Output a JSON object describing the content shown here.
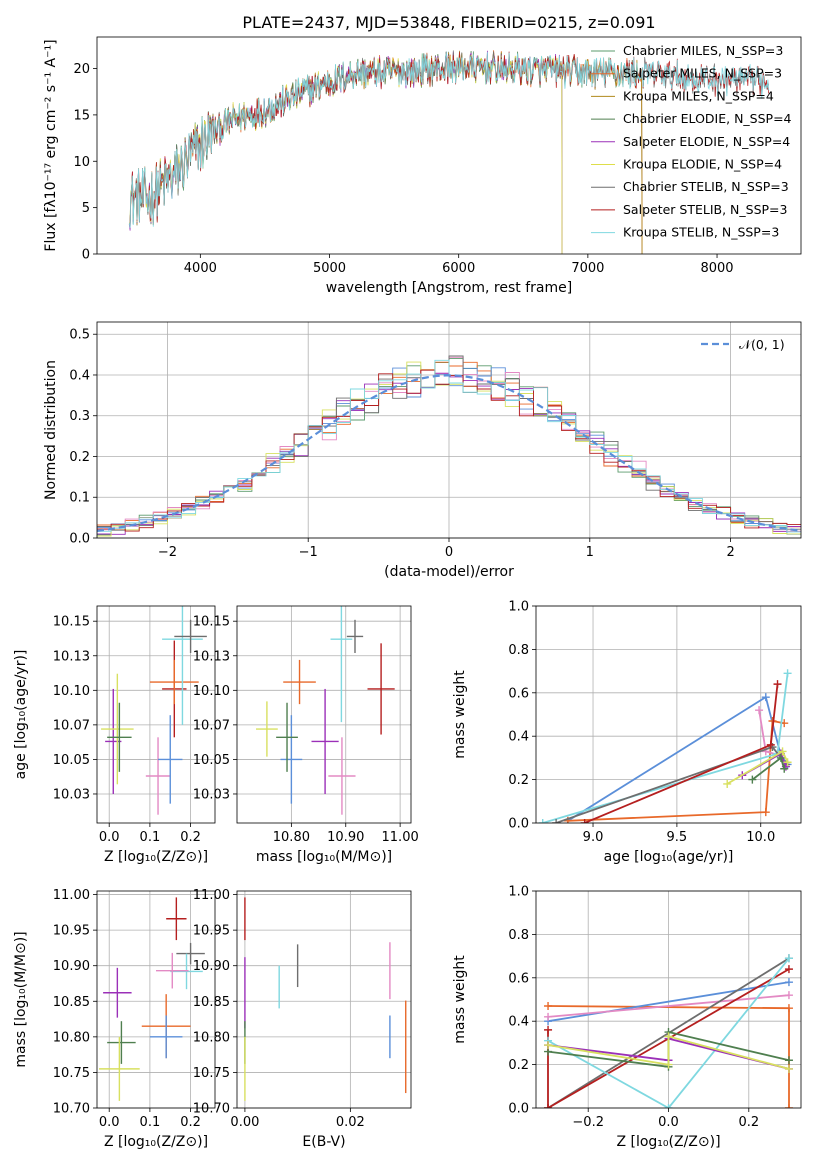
{
  "chart_data": [
    {
      "id": "spectrum",
      "type": "line",
      "title": "PLATE=2437, MJD=53848, FIBERID=0215, z=0.091",
      "xlabel": "wavelength [Angstrom, rest frame]",
      "ylabel": "Flux [fλ10⁻¹⁷ erg cm⁻² s⁻¹ A⁻¹]",
      "xlim": [
        3200,
        8650
      ],
      "ylim": [
        0,
        23.4
      ],
      "xticks": [
        4000,
        5000,
        6000,
        7000,
        8000
      ],
      "yticks": [
        0,
        5,
        10,
        15,
        20
      ],
      "grid": false,
      "legend_position": "upper right",
      "continuum": {
        "x": [
          3450,
          3600,
          3800,
          3950,
          4050,
          4250,
          4500,
          4800,
          5200,
          5600,
          6000,
          6500,
          7000,
          7400,
          7800,
          8300
        ],
        "y": [
          6,
          6,
          8.5,
          11,
          12.5,
          14.5,
          15.5,
          17.5,
          19.5,
          19.7,
          20.2,
          19.9,
          19.6,
          19.5,
          19.0,
          18.6
        ]
      },
      "series": [
        {
          "name": "Chabrier MILES, N_SSP=3",
          "color": "#5b9b6c",
          "xmax": 7420
        },
        {
          "name": "Salpeter MILES, N_SSP=3",
          "color": "#e8692a",
          "xmax": 7420
        },
        {
          "name": "Kroupa MILES, N_SSP=4",
          "color": "#b08a1c",
          "xmax": 7420
        },
        {
          "name": "Chabrier ELODIE, N_SSP=4",
          "color": "#4f7f4f",
          "xmax": 6800
        },
        {
          "name": "Salpeter ELODIE, N_SSP=4",
          "color": "#9b30b8",
          "xmax": 6800
        },
        {
          "name": "Kroupa ELODIE, N_SSP=4",
          "color": "#dede4a",
          "xmax": 6800
        },
        {
          "name": "Chabrier STELIB, N_SSP=3",
          "color": "#6e6e6e",
          "xmax": 8400
        },
        {
          "name": "Salpeter STELIB, N_SSP=3",
          "color": "#b51f1f",
          "xmax": 8400
        },
        {
          "name": "Kroupa STELIB, N_SSP=3",
          "color": "#7fd8e0",
          "xmax": 8400
        }
      ]
    },
    {
      "id": "residuals",
      "type": "line",
      "xlabel": "(data-model)/error",
      "ylabel": "Normed distribution",
      "xlim": [
        -2.5,
        2.5
      ],
      "ylim": [
        0,
        0.53
      ],
      "xticks": [
        -2,
        -1,
        0,
        1,
        2
      ],
      "yticks": [
        0.0,
        0.1,
        0.2,
        0.3,
        0.4,
        0.5
      ],
      "grid": true,
      "legend_position": "upper right",
      "legend": "𝒩(0, 1)",
      "gaussian": {
        "mu": 0,
        "sigma": 1,
        "color": "#5b8fd9"
      },
      "bin_width": 0.1,
      "series_colors": [
        "#5b9b6c",
        "#e8692a",
        "#5b8fd9",
        "#e38ac4",
        "#9b30b8",
        "#d8e060",
        "#6e6e6e",
        "#b51f1f",
        "#7fd8e0"
      ]
    },
    {
      "id": "age_vs_Z",
      "type": "scatter",
      "xlabel": "Z [log₁₀(Z/Z⊙)]",
      "ylabel": "age  [log₁₀(age/yr)]",
      "xlim": [
        -0.03,
        0.26
      ],
      "ylim": [
        10.004,
        10.161
      ],
      "xticks": [
        0.0,
        0.1,
        0.2
      ],
      "yticks": [
        10.025,
        10.05,
        10.075,
        10.1,
        10.125,
        10.15
      ],
      "grid": true,
      "points": [
        {
          "color": "#b51f1f",
          "x": 0.16,
          "xerr": 0.03,
          "y": 10.101,
          "yerr": 0.035
        },
        {
          "color": "#e8692a",
          "x": 0.16,
          "xerr": 0.06,
          "y": 10.106,
          "yerr": 0.016
        },
        {
          "color": "#e38ac4",
          "x": 0.12,
          "xerr": 0.03,
          "y": 10.038,
          "yerr": 0.028
        },
        {
          "color": "#5b8fd9",
          "x": 0.15,
          "xerr": 0.03,
          "y": 10.05,
          "yerr": 0.032
        },
        {
          "color": "#7fd8e0",
          "x": 0.18,
          "xerr": 0.05,
          "y": 10.137,
          "yerr": 0.062
        },
        {
          "color": "#6e6e6e",
          "x": 0.2,
          "xerr": 0.04,
          "y": 10.139,
          "yerr": 0.012
        },
        {
          "color": "#9b30b8",
          "x": 0.01,
          "xerr": 0.02,
          "y": 10.063,
          "yerr": 0.038
        },
        {
          "color": "#d8e060",
          "x": 0.02,
          "xerr": 0.04,
          "y": 10.072,
          "yerr": 0.04
        },
        {
          "color": "#4f7f4f",
          "x": 0.025,
          "xerr": 0.03,
          "y": 10.066,
          "yerr": 0.025
        }
      ]
    },
    {
      "id": "age_vs_mass",
      "type": "scatter",
      "xlabel": "mass [log₁₀(M/M⊙)]",
      "ylabel": "",
      "xlim": [
        10.7,
        11.02
      ],
      "ylim": [
        10.004,
        10.161
      ],
      "xticks": [
        10.8,
        10.9,
        11.0
      ],
      "yticks": [
        10.025,
        10.05,
        10.075,
        10.1,
        10.125,
        10.15
      ],
      "grid": true,
      "points": [
        {
          "color": "#b51f1f",
          "x": 10.965,
          "xerr": 0.025,
          "y": 10.101,
          "yerr": 0.033
        },
        {
          "color": "#e8692a",
          "x": 10.815,
          "xerr": 0.03,
          "y": 10.106,
          "yerr": 0.016
        },
        {
          "color": "#e38ac4",
          "x": 10.893,
          "xerr": 0.025,
          "y": 10.038,
          "yerr": 0.028
        },
        {
          "color": "#5b8fd9",
          "x": 10.8,
          "xerr": 0.02,
          "y": 10.05,
          "yerr": 0.032
        },
        {
          "color": "#7fd8e0",
          "x": 10.892,
          "xerr": 0.02,
          "y": 10.137,
          "yerr": 0.06
        },
        {
          "color": "#6e6e6e",
          "x": 10.917,
          "xerr": 0.015,
          "y": 10.139,
          "yerr": 0.012
        },
        {
          "color": "#9b30b8",
          "x": 10.862,
          "xerr": 0.025,
          "y": 10.063,
          "yerr": 0.038
        },
        {
          "color": "#d8e060",
          "x": 10.755,
          "xerr": 0.02,
          "y": 10.072,
          "yerr": 0.02
        },
        {
          "color": "#4f7f4f",
          "x": 10.792,
          "xerr": 0.02,
          "y": 10.066,
          "yerr": 0.025
        }
      ]
    },
    {
      "id": "weight_vs_age",
      "type": "line",
      "xlabel": "age  [log₁₀(age/yr)]",
      "ylabel": "mass weight",
      "xlim": [
        8.66,
        10.24
      ],
      "ylim": [
        0,
        1.0
      ],
      "xticks": [
        9.0,
        9.5,
        10.0
      ],
      "yticks": [
        0.0,
        0.2,
        0.4,
        0.6,
        0.8,
        1.0
      ],
      "grid": true,
      "series": [
        {
          "color": "#5b8fd9",
          "points": [
            [
              8.85,
              0.01
            ],
            [
              10.03,
              0.58
            ],
            [
              10.12,
              0.31
            ],
            [
              10.16,
              0.27
            ]
          ]
        },
        {
          "color": "#e8692a",
          "points": [
            [
              8.85,
              0.01
            ],
            [
              10.03,
              0.05
            ],
            [
              10.07,
              0.47
            ],
            [
              10.14,
              0.46
            ]
          ]
        },
        {
          "color": "#e38ac4",
          "points": [
            [
              9.99,
              0.52
            ],
            [
              10.03,
              0.33
            ],
            [
              10.12,
              0.31
            ]
          ]
        },
        {
          "color": "#7fd8e0",
          "points": [
            [
              8.7,
              0.0
            ],
            [
              10.1,
              0.32
            ],
            [
              10.16,
              0.69
            ]
          ]
        },
        {
          "color": "#6e6e6e",
          "points": [
            [
              8.78,
              0.0
            ],
            [
              10.07,
              0.35
            ],
            [
              10.15,
              0.27
            ]
          ]
        },
        {
          "color": "#b51f1f",
          "points": [
            [
              8.95,
              0.0
            ],
            [
              10.06,
              0.36
            ],
            [
              10.1,
              0.64
            ]
          ]
        },
        {
          "color": "#9b30b8",
          "points": [
            [
              9.89,
              0.22
            ],
            [
              10.12,
              0.32
            ],
            [
              10.15,
              0.26
            ]
          ]
        },
        {
          "color": "#4f7f4f",
          "points": [
            [
              9.95,
              0.2
            ],
            [
              10.12,
              0.3
            ],
            [
              10.14,
              0.25
            ]
          ]
        },
        {
          "color": "#d8e060",
          "points": [
            [
              9.8,
              0.18
            ],
            [
              10.13,
              0.33
            ],
            [
              10.16,
              0.28
            ]
          ]
        }
      ]
    },
    {
      "id": "mass_vs_Z",
      "type": "scatter",
      "xlabel": "Z [log₁₀(Z/Z⊙)]",
      "ylabel": "mass [log₁₀(M/M⊙)]",
      "xlim": [
        -0.03,
        0.26
      ],
      "ylim": [
        10.7,
        11.005
      ],
      "xticks": [
        0.0,
        0.1,
        0.2
      ],
      "yticks": [
        10.7,
        10.75,
        10.8,
        10.85,
        10.9,
        10.95,
        11.0
      ],
      "grid": true,
      "points": [
        {
          "color": "#b51f1f",
          "x": 0.165,
          "xerr": 0.025,
          "y": 10.966,
          "yerr": 0.03
        },
        {
          "color": "#6e6e6e",
          "x": 0.2,
          "xerr": 0.035,
          "y": 10.917,
          "yerr": 0.015
        },
        {
          "color": "#7fd8e0",
          "x": 0.19,
          "xerr": 0.04,
          "y": 10.892,
          "yerr": 0.025
        },
        {
          "color": "#e38ac4",
          "x": 0.155,
          "xerr": 0.04,
          "y": 10.893,
          "yerr": 0.025
        },
        {
          "color": "#9b30b8",
          "x": 0.02,
          "xerr": 0.035,
          "y": 10.862,
          "yerr": 0.035
        },
        {
          "color": "#e8692a",
          "x": 0.14,
          "xerr": 0.06,
          "y": 10.815,
          "yerr": 0.045
        },
        {
          "color": "#5b8fd9",
          "x": 0.14,
          "xerr": 0.04,
          "y": 10.8,
          "yerr": 0.03
        },
        {
          "color": "#4f7f4f",
          "x": 0.03,
          "xerr": 0.035,
          "y": 10.792,
          "yerr": 0.03
        },
        {
          "color": "#d8e060",
          "x": 0.025,
          "xerr": 0.05,
          "y": 10.755,
          "yerr": 0.045
        }
      ]
    },
    {
      "id": "mass_vs_ebv",
      "type": "scatter",
      "xlabel": "E(B-V)",
      "ylabel": "",
      "xlim": [
        -0.0015,
        0.0315
      ],
      "ylim": [
        10.7,
        11.005
      ],
      "xticks": [
        0.0,
        0.02
      ],
      "yticks": [
        10.7,
        10.75,
        10.8,
        10.85,
        10.9,
        10.95,
        11.0
      ],
      "grid": true,
      "points": [
        {
          "color": "#b51f1f",
          "x": 0.0,
          "xerr": 0,
          "y": 10.966,
          "yerr": 0.03
        },
        {
          "color": "#9b30b8",
          "x": 0.0,
          "xerr": 0,
          "y": 10.862,
          "yerr": 0.05
        },
        {
          "color": "#4f7f4f",
          "x": 0.0,
          "xerr": 0,
          "y": 10.792,
          "yerr": 0.03
        },
        {
          "color": "#d8e060",
          "x": 0.0,
          "xerr": 0,
          "y": 10.755,
          "yerr": 0.045
        },
        {
          "color": "#7fd8e0",
          "x": 0.0065,
          "xerr": 0,
          "y": 10.87,
          "yerr": 0.03
        },
        {
          "color": "#6e6e6e",
          "x": 0.01,
          "xerr": 0,
          "y": 10.9,
          "yerr": 0.03
        },
        {
          "color": "#e38ac4",
          "x": 0.0275,
          "xerr": 0,
          "y": 10.893,
          "yerr": 0.04
        },
        {
          "color": "#5b8fd9",
          "x": 0.0275,
          "xerr": 0,
          "y": 10.8,
          "yerr": 0.03
        },
        {
          "color": "#e8692a",
          "x": 0.0305,
          "xerr": 0,
          "y": 10.786,
          "yerr": 0.065
        }
      ]
    },
    {
      "id": "weight_vs_Z",
      "type": "line",
      "xlabel": "Z [log₁₀(Z/Z⊙)]",
      "ylabel": "mass weight",
      "xlim": [
        -0.33,
        0.33
      ],
      "ylim": [
        0,
        1.0
      ],
      "xticks": [
        -0.2,
        0.0,
        0.2
      ],
      "yticks": [
        0.0,
        0.2,
        0.4,
        0.6,
        0.8,
        1.0
      ],
      "grid": true,
      "series": [
        {
          "color": "#e8692a",
          "points": [
            [
              -0.3,
              0.47
            ],
            [
              0.3,
              0.46
            ],
            [
              0.3,
              0.0
            ]
          ]
        },
        {
          "color": "#5b8fd9",
          "points": [
            [
              -0.3,
              0.4
            ],
            [
              0.3,
              0.58
            ]
          ]
        },
        {
          "color": "#e38ac4",
          "points": [
            [
              -0.3,
              0.42
            ],
            [
              0.3,
              0.52
            ]
          ]
        },
        {
          "color": "#6e6e6e",
          "points": [
            [
              -0.3,
              0.0
            ],
            [
              0.3,
              0.69
            ]
          ]
        },
        {
          "color": "#b51f1f",
          "points": [
            [
              -0.3,
              0.36
            ],
            [
              -0.3,
              0.0
            ],
            [
              0.3,
              0.64
            ]
          ]
        },
        {
          "color": "#7fd8e0",
          "points": [
            [
              -0.3,
              0.31
            ],
            [
              0.0,
              0.0
            ],
            [
              0.3,
              0.69
            ]
          ]
        },
        {
          "color": "#9b30b8",
          "points": [
            [
              -0.3,
              0.29
            ],
            [
              0.0,
              0.22
            ],
            [
              0.0,
              0.32
            ],
            [
              0.3,
              0.18
            ]
          ]
        },
        {
          "color": "#4f7f4f",
          "points": [
            [
              -0.3,
              0.26
            ],
            [
              0.0,
              0.19
            ],
            [
              0.0,
              0.35
            ],
            [
              0.3,
              0.22
            ]
          ]
        },
        {
          "color": "#d8e060",
          "points": [
            [
              -0.3,
              0.29
            ],
            [
              0.0,
              0.2
            ],
            [
              0.0,
              0.33
            ],
            [
              0.3,
              0.18
            ]
          ]
        }
      ]
    }
  ]
}
